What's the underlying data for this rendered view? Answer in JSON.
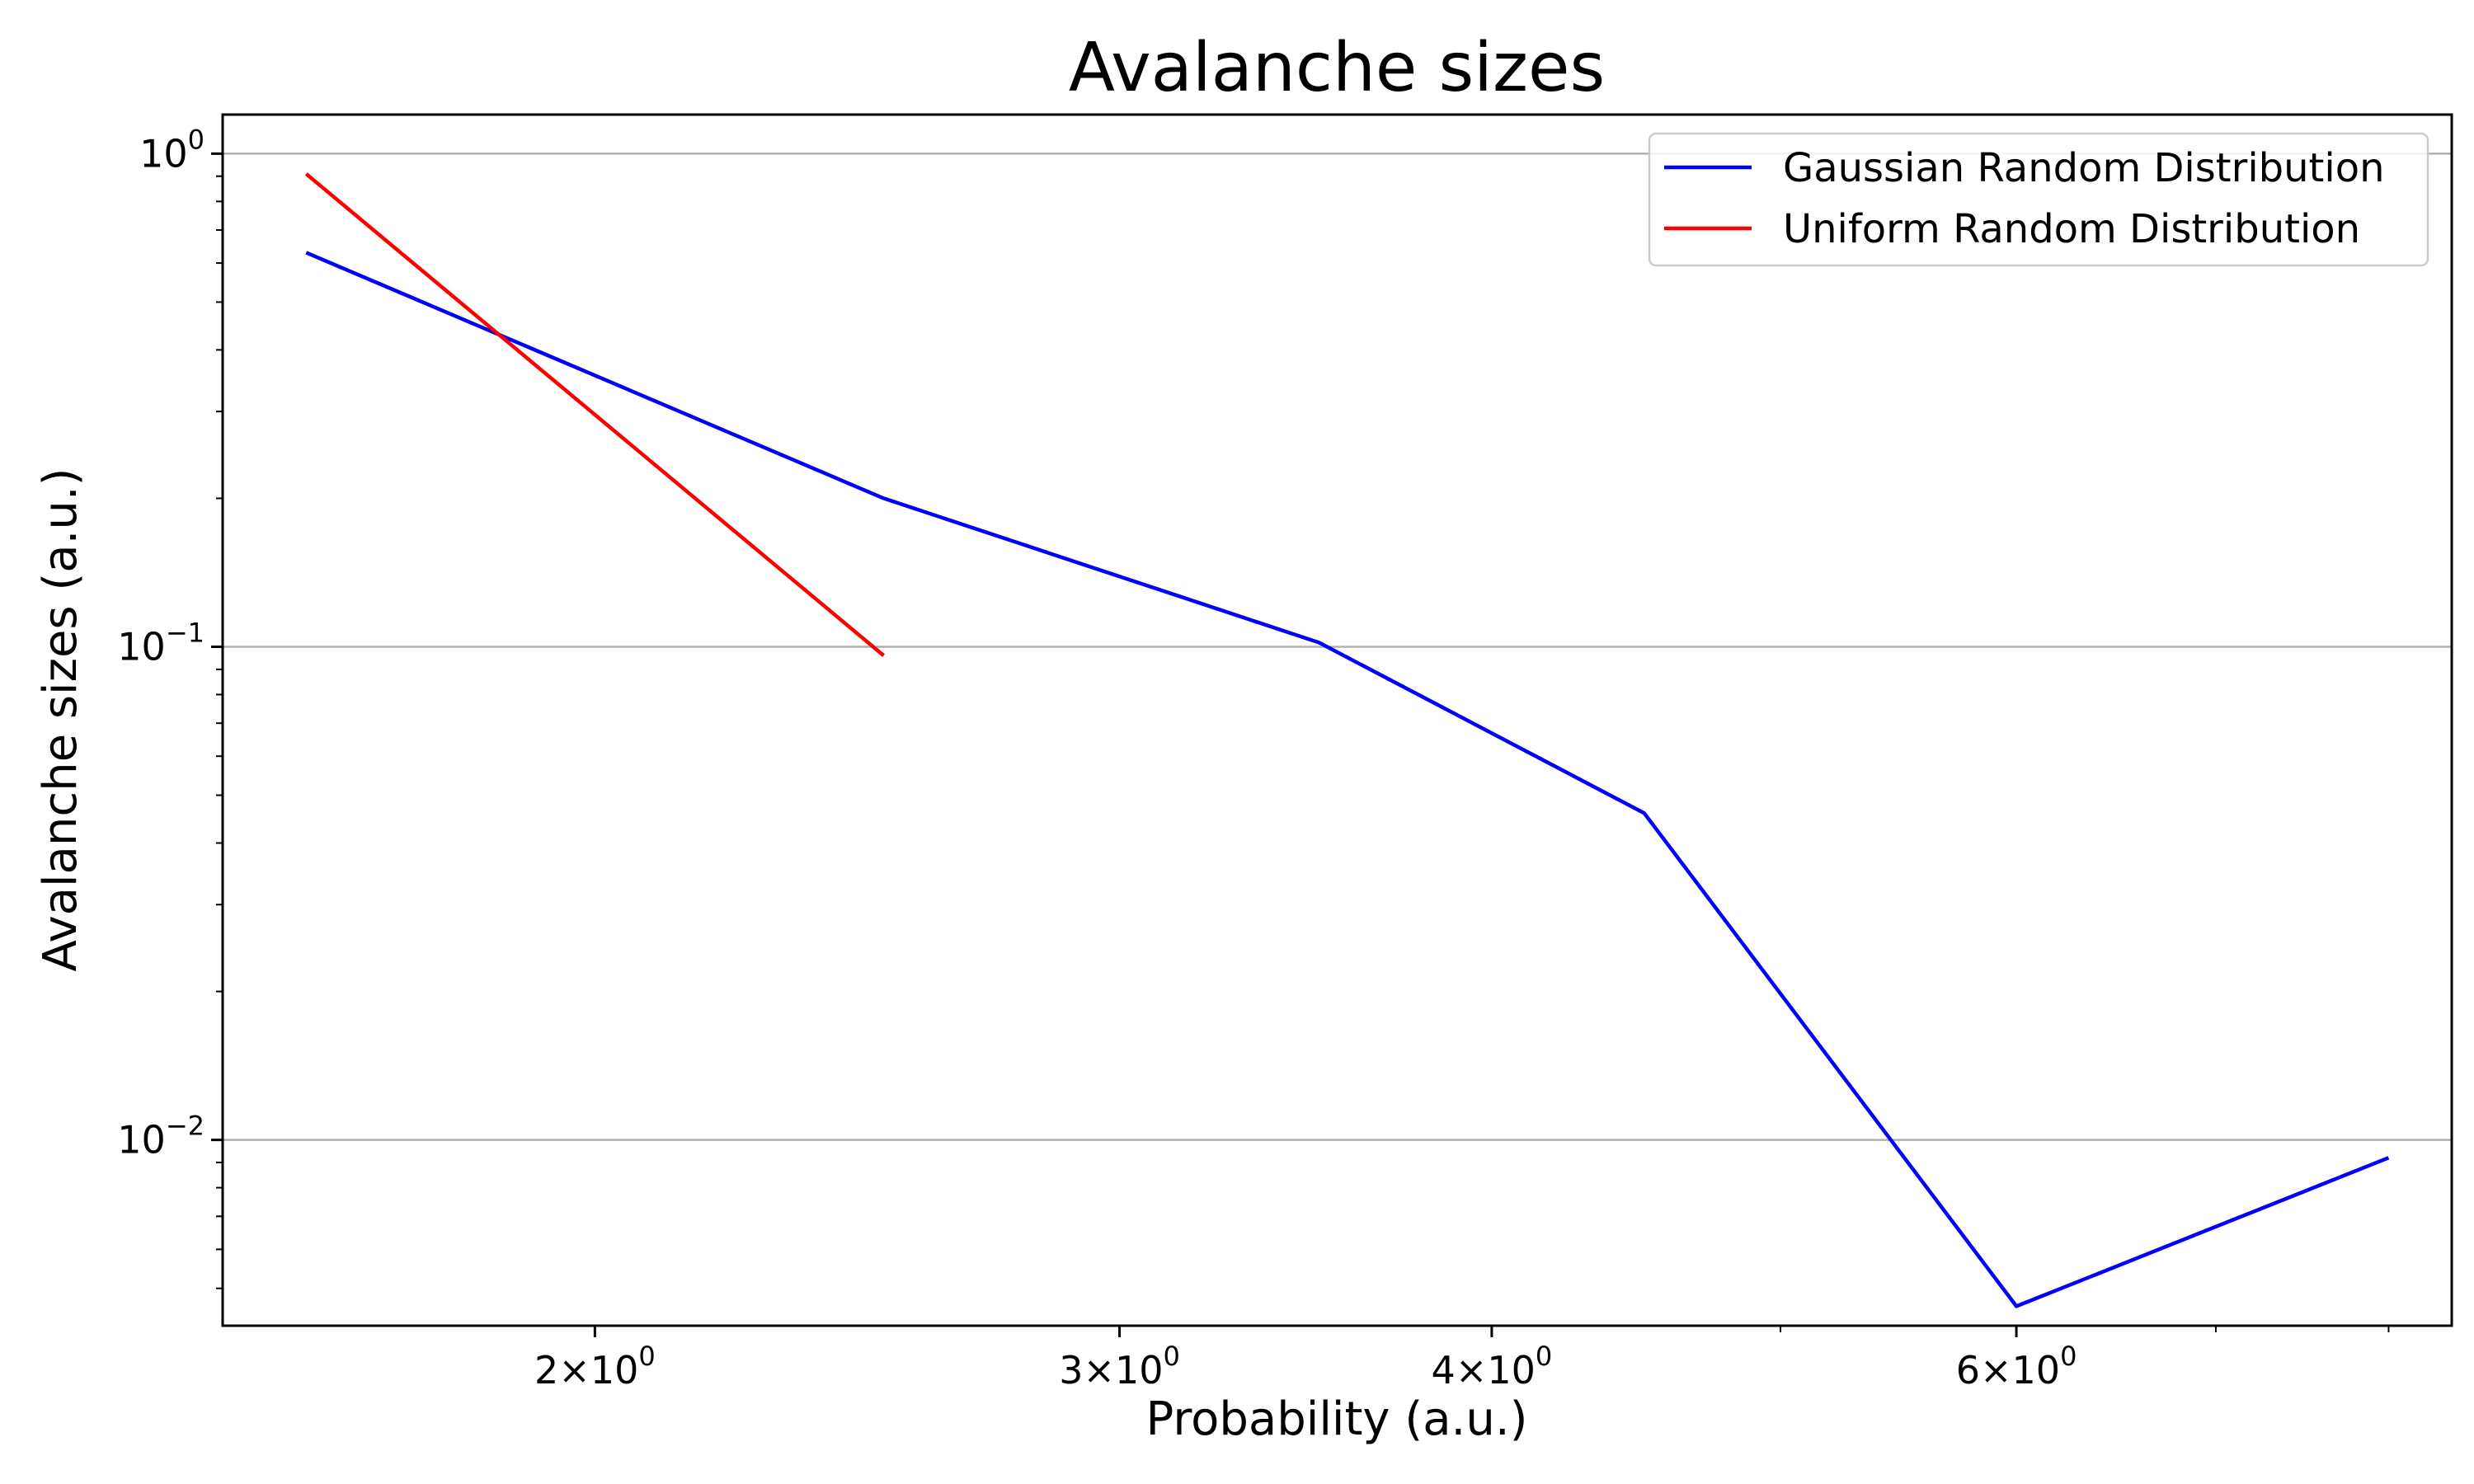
{
  "chart_data": {
    "type": "line",
    "title": "Avalanche sizes",
    "xlabel": "Probability (a.u.)",
    "ylabel": "Avalanche sizes (a.u.)",
    "xscale": "log",
    "yscale": "log",
    "xlim": [
      1.5,
      8.4
    ],
    "ylim": [
      0.0042,
      1.2
    ],
    "grid": "horizontal",
    "legend_position": "top-right",
    "x_ticks": [
      {
        "value": 2,
        "base": "2×10",
        "exp": "0"
      },
      {
        "value": 3,
        "base": "3×10",
        "exp": "0"
      },
      {
        "value": 4,
        "base": "4×10",
        "exp": "0"
      },
      {
        "value": 6,
        "base": "6×10",
        "exp": "0"
      }
    ],
    "x_minor_ticks": [
      5,
      7,
      8
    ],
    "y_ticks": [
      {
        "value": 1,
        "base": "10",
        "exp": "0"
      },
      {
        "value": 0.1,
        "base": "10",
        "exp": "−1"
      },
      {
        "value": 0.01,
        "base": "10",
        "exp": "−2"
      }
    ],
    "y_minor_ticks": [
      0.005,
      0.006,
      0.007,
      0.008,
      0.009,
      0.02,
      0.03,
      0.04,
      0.05,
      0.06,
      0.07,
      0.08,
      0.09,
      0.2,
      0.3,
      0.4,
      0.5,
      0.6,
      0.7,
      0.8,
      0.9
    ],
    "series": [
      {
        "name": "Gaussian Random Distribution",
        "color": "#0000ff",
        "x": [
          1.6,
          2.5,
          3.5,
          4.5,
          6.0,
          8.0
        ],
        "y": [
          0.63,
          0.2,
          0.102,
          0.046,
          0.0046,
          0.0092
        ]
      },
      {
        "name": "Uniform Random Distribution",
        "color": "#ff0000",
        "x": [
          1.6,
          2.5
        ],
        "y": [
          0.91,
          0.096
        ]
      }
    ]
  }
}
